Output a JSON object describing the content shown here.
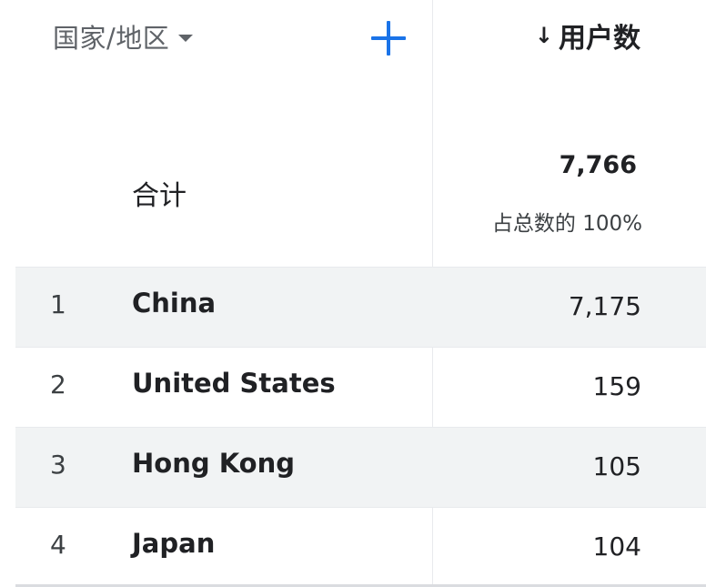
{
  "header": {
    "dimension_label": "国家/地区",
    "metric_label": "用户数",
    "sort_arrow": "↓",
    "accent_color": "#1a73e8"
  },
  "totals": {
    "label": "合计",
    "value": "7,766",
    "subtext": "占总数的 100%"
  },
  "rows": [
    {
      "rank": "1",
      "name": "China",
      "value": "7,175"
    },
    {
      "rank": "2",
      "name": "United States",
      "value": "159"
    },
    {
      "rank": "3",
      "name": "Hong Kong",
      "value": "105"
    },
    {
      "rank": "4",
      "name": "Japan",
      "value": "104"
    }
  ]
}
